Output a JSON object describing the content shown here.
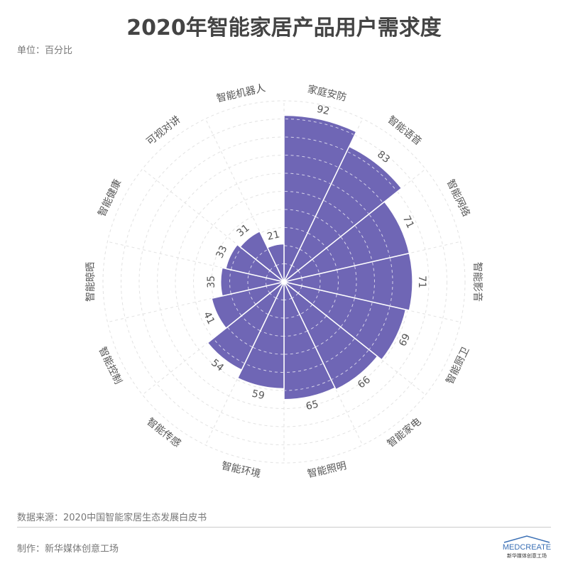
{
  "title": "2020年智能家居产品用户需求度",
  "unit": "单位：百分比",
  "source": "数据来源：2020中国智能家居生态发展白皮书",
  "maker": "制作：新华媒体创意工场",
  "logo_text": "MEDCREATE 新华媒体创意工场",
  "colors": {
    "bar": "#6f66b5",
    "grid": "#e2e2e2",
    "text": "#555555"
  },
  "chart_data": {
    "type": "polar-bar",
    "categories": [
      "家庭安防",
      "智能语音",
      "智能网络",
      "智能影音",
      "智能厨卫",
      "智能家电",
      "智能照明",
      "智能环境",
      "智能传感",
      "智能控制",
      "智能晾晒",
      "智能健康",
      "可视对讲",
      "智能机器人"
    ],
    "values": [
      92,
      83,
      71,
      71,
      69,
      66,
      65,
      59,
      54,
      41,
      35,
      33,
      31,
      21
    ],
    "rlim": [
      0,
      100
    ],
    "grid": true,
    "direction": "clockwise from top"
  }
}
